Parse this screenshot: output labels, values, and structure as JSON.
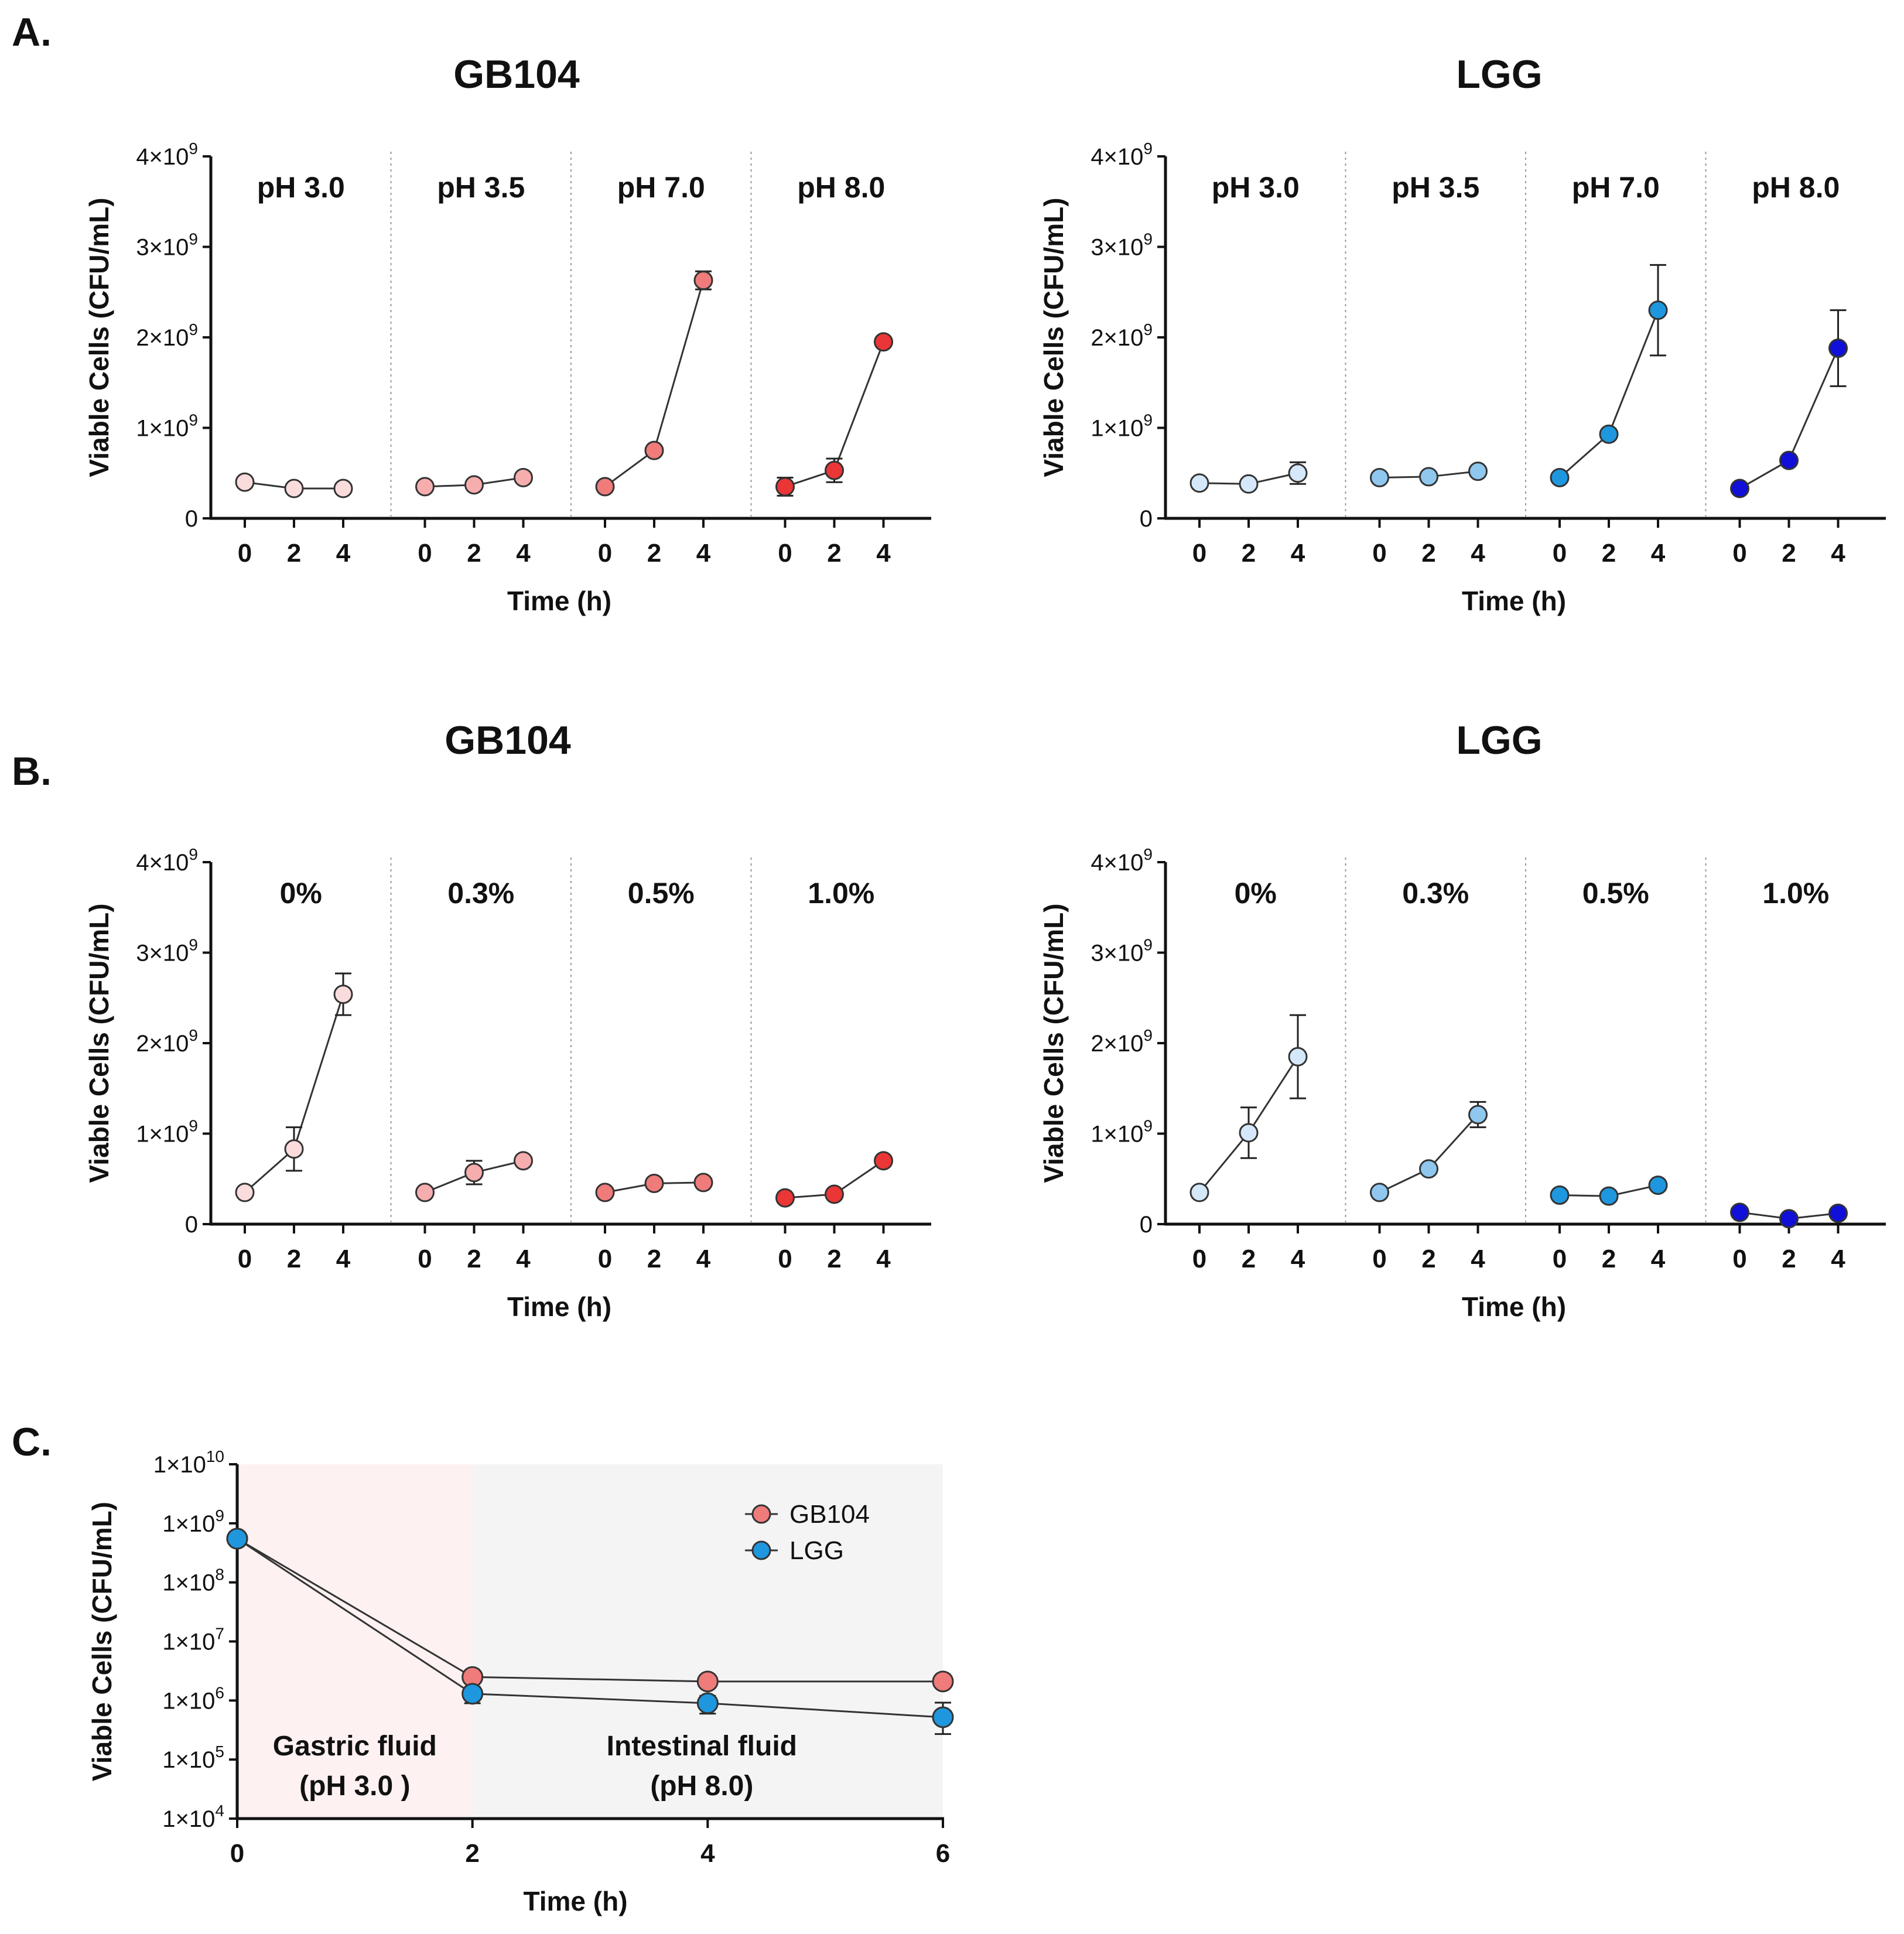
{
  "panels": [
    {
      "letter": "A."
    },
    {
      "letter": "B."
    },
    {
      "letter": "C."
    }
  ],
  "chart_data": [
    {
      "type": "line",
      "panel": "A",
      "title": "GB104",
      "xlabel": "Time (h)",
      "ylabel": "Viable Cells (CFU/mL)",
      "ylim": [
        0,
        4000000000
      ],
      "yticks": [
        {
          "value": 0,
          "label": "0"
        },
        {
          "value": 1000000000,
          "label": "1×10",
          "exp": "9"
        },
        {
          "value": 2000000000,
          "label": "2×10",
          "exp": "9"
        },
        {
          "value": 3000000000,
          "label": "3×10",
          "exp": "9"
        },
        {
          "value": 4000000000,
          "label": "4×10",
          "exp": "9"
        }
      ],
      "x": [
        0,
        2,
        4
      ],
      "xtick_labels": [
        "0",
        "2",
        "4"
      ],
      "groups": [
        {
          "label": "pH 3.0",
          "color": "#fbdcdc",
          "values": [
            400000000,
            330000000,
            330000000
          ],
          "errors": [
            20000000,
            20000000,
            20000000
          ]
        },
        {
          "label": "pH 3.5",
          "color": "#f6adad",
          "values": [
            350000000,
            370000000,
            450000000
          ],
          "errors": [
            30000000,
            30000000,
            50000000
          ]
        },
        {
          "label": "pH 7.0",
          "color": "#ef7b7b",
          "values": [
            350000000,
            750000000,
            2630000000
          ],
          "errors": [
            20000000,
            30000000,
            100000000
          ]
        },
        {
          "label": "pH 8.0",
          "color": "#ea3636",
          "values": [
            350000000,
            530000000,
            1950000000
          ],
          "errors": [
            100000000,
            130000000,
            30000000
          ]
        }
      ]
    },
    {
      "type": "line",
      "panel": "A",
      "title": "LGG",
      "xlabel": "Time (h)",
      "ylabel": "Viable Cells (CFU/mL)",
      "ylim": [
        0,
        4000000000
      ],
      "yticks": [
        {
          "value": 0,
          "label": "0"
        },
        {
          "value": 1000000000,
          "label": "1×10",
          "exp": "9"
        },
        {
          "value": 2000000000,
          "label": "2×10",
          "exp": "9"
        },
        {
          "value": 3000000000,
          "label": "3×10",
          "exp": "9"
        },
        {
          "value": 4000000000,
          "label": "4×10",
          "exp": "9"
        }
      ],
      "x": [
        0,
        2,
        4
      ],
      "xtick_labels": [
        "0",
        "2",
        "4"
      ],
      "groups": [
        {
          "label": "pH 3.0",
          "color": "#d4e8f9",
          "values": [
            390000000,
            380000000,
            500000000
          ],
          "errors": [
            20000000,
            20000000,
            120000000
          ]
        },
        {
          "label": "pH 3.5",
          "color": "#8fc7ef",
          "values": [
            450000000,
            460000000,
            520000000
          ],
          "errors": [
            20000000,
            30000000,
            50000000
          ]
        },
        {
          "label": "pH 7.0",
          "color": "#1f97de",
          "values": [
            450000000,
            930000000,
            2300000000
          ],
          "errors": [
            20000000,
            30000000,
            500000000
          ]
        },
        {
          "label": "pH 8.0",
          "color": "#1010d8",
          "values": [
            330000000,
            640000000,
            1880000000
          ],
          "errors": [
            20000000,
            30000000,
            420000000
          ]
        }
      ]
    },
    {
      "type": "line",
      "panel": "B",
      "title": "GB104",
      "xlabel": "Time (h)",
      "ylabel": "Viable Cells (CFU/mL)",
      "ylim": [
        0,
        4000000000
      ],
      "yticks": [
        {
          "value": 0,
          "label": "0"
        },
        {
          "value": 1000000000,
          "label": "1×10",
          "exp": "9"
        },
        {
          "value": 2000000000,
          "label": "2×10",
          "exp": "9"
        },
        {
          "value": 3000000000,
          "label": "3×10",
          "exp": "9"
        },
        {
          "value": 4000000000,
          "label": "4×10",
          "exp": "9"
        }
      ],
      "x": [
        0,
        2,
        4
      ],
      "xtick_labels": [
        "0",
        "2",
        "4"
      ],
      "groups": [
        {
          "label": "0%",
          "color": "#fbdcdc",
          "values": [
            350000000,
            830000000,
            2540000000
          ],
          "errors": [
            20000000,
            240000000,
            230000000
          ]
        },
        {
          "label": "0.3%",
          "color": "#f6adad",
          "values": [
            350000000,
            570000000,
            700000000
          ],
          "errors": [
            20000000,
            130000000,
            30000000
          ]
        },
        {
          "label": "0.5%",
          "color": "#ef7b7b",
          "values": [
            350000000,
            450000000,
            460000000
          ],
          "errors": [
            20000000,
            30000000,
            30000000
          ]
        },
        {
          "label": "1.0%",
          "color": "#ea3636",
          "values": [
            290000000,
            330000000,
            700000000
          ],
          "errors": [
            20000000,
            30000000,
            30000000
          ]
        }
      ]
    },
    {
      "type": "line",
      "panel": "B",
      "title": "LGG",
      "xlabel": "Time (h)",
      "ylabel": "Viable Cells (CFU/mL)",
      "ylim": [
        0,
        4000000000
      ],
      "yticks": [
        {
          "value": 0,
          "label": "0"
        },
        {
          "value": 1000000000,
          "label": "1×10",
          "exp": "9"
        },
        {
          "value": 2000000000,
          "label": "2×10",
          "exp": "9"
        },
        {
          "value": 3000000000,
          "label": "3×10",
          "exp": "9"
        },
        {
          "value": 4000000000,
          "label": "4×10",
          "exp": "9"
        }
      ],
      "x": [
        0,
        2,
        4
      ],
      "xtick_labels": [
        "0",
        "2",
        "4"
      ],
      "groups": [
        {
          "label": "0%",
          "color": "#d4e8f9",
          "values": [
            350000000,
            1010000000,
            1850000000
          ],
          "errors": [
            20000000,
            280000000,
            460000000
          ]
        },
        {
          "label": "0.3%",
          "color": "#8fc7ef",
          "values": [
            350000000,
            610000000,
            1210000000
          ],
          "errors": [
            20000000,
            30000000,
            140000000
          ]
        },
        {
          "label": "0.5%",
          "color": "#1f97de",
          "values": [
            320000000,
            310000000,
            430000000
          ],
          "errors": [
            20000000,
            20000000,
            30000000
          ]
        },
        {
          "label": "1.0%",
          "color": "#1010d8",
          "values": [
            130000000,
            60000000,
            120000000
          ],
          "errors": [
            20000000,
            20000000,
            20000000
          ]
        }
      ]
    },
    {
      "type": "line",
      "panel": "C",
      "title": "",
      "xlabel": "Time (h)",
      "ylabel": "Viable Cells (CFU/mL)",
      "yscale": "log",
      "ylim": [
        10000,
        10000000000
      ],
      "yticks": [
        {
          "value": 10000,
          "label": "1×10",
          "exp": "4"
        },
        {
          "value": 100000,
          "label": "1×10",
          "exp": "5"
        },
        {
          "value": 1000000,
          "label": "1×10",
          "exp": "6"
        },
        {
          "value": 10000000,
          "label": "1×10",
          "exp": "7"
        },
        {
          "value": 100000000,
          "label": "1×10",
          "exp": "8"
        },
        {
          "value": 1000000000,
          "label": "1×10",
          "exp": "9"
        },
        {
          "value": 10000000000,
          "label": "1×10",
          "exp": "10"
        }
      ],
      "xlim": [
        0,
        6
      ],
      "xticks": [
        0,
        2,
        4,
        6
      ],
      "xtick_labels": [
        "0",
        "2",
        "4",
        "6"
      ],
      "regions": [
        {
          "from": 0,
          "to": 2,
          "label_line1": "Gastric fluid",
          "label_line2": "(pH 3.0 )",
          "color": "#fdf1f1"
        },
        {
          "from": 2,
          "to": 6,
          "label_line1": "Intestinal fluid",
          "label_line2": "(pH 8.0)",
          "color": "#f4f4f4"
        }
      ],
      "legend_position": "top-right",
      "series": [
        {
          "name": "GB104",
          "color": "#ef7b7b",
          "x": [
            0,
            2,
            4,
            6
          ],
          "values": [
            550000000,
            2500000,
            2100000,
            2100000
          ],
          "errors_up": [
            0,
            200000,
            200000,
            200000
          ],
          "errors_down": [
            0,
            200000,
            200000,
            200000
          ]
        },
        {
          "name": "LGG",
          "color": "#1f97de",
          "x": [
            0,
            2,
            4,
            6
          ],
          "values": [
            550000000,
            1300000,
            900000,
            520000
          ],
          "errors_up": [
            0,
            400000,
            300000,
            400000
          ],
          "errors_down": [
            0,
            400000,
            300000,
            250000
          ]
        }
      ]
    }
  ]
}
